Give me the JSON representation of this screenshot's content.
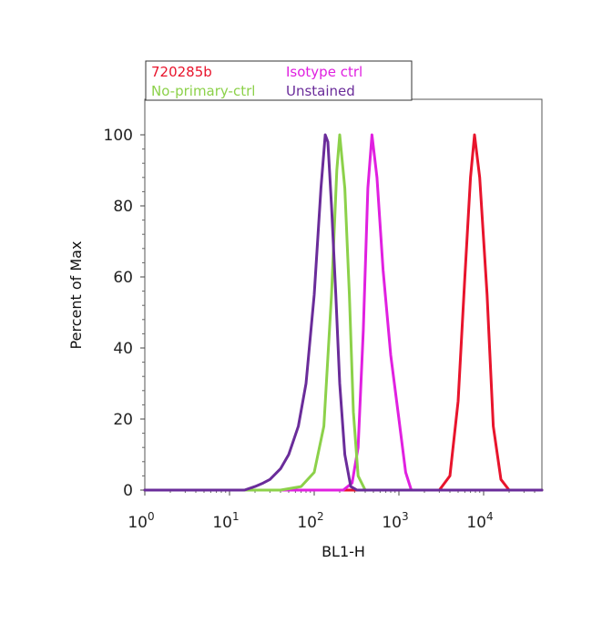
{
  "chart_data": {
    "type": "line",
    "title": "",
    "xlabel": "BL1-H",
    "ylabel": "Percent of Max",
    "x_scale": "log",
    "xlim": [
      1,
      60000
    ],
    "ylim": [
      0,
      110
    ],
    "grid": false,
    "legend_position": "top-left",
    "y_ticks": [
      0,
      20,
      40,
      60,
      80,
      100
    ],
    "x_ticks": [
      {
        "base": "10",
        "exp": "0"
      },
      {
        "base": "10",
        "exp": "1"
      },
      {
        "base": "10",
        "exp": "2"
      },
      {
        "base": "10",
        "exp": "3"
      },
      {
        "base": "10",
        "exp": "4"
      }
    ],
    "series": [
      {
        "name": "720285b",
        "color": "#e8142c",
        "x": [
          1,
          1000,
          3000,
          4000,
          5000,
          6000,
          7000,
          7800,
          9000,
          11000,
          13000,
          16000,
          20000,
          60000
        ],
        "y": [
          0,
          0,
          0,
          4,
          25,
          60,
          88,
          100,
          88,
          55,
          18,
          3,
          0,
          0
        ]
      },
      {
        "name": "Isotype ctrl",
        "color": "#e020e0",
        "x": [
          1,
          100,
          220,
          280,
          330,
          380,
          430,
          480,
          550,
          650,
          800,
          1000,
          1200,
          1400,
          2000,
          60000
        ],
        "y": [
          0,
          0,
          0,
          2,
          12,
          45,
          85,
          100,
          88,
          62,
          38,
          20,
          5,
          0,
          0,
          0
        ]
      },
      {
        "name": "No-primary-ctrl",
        "color": "#8cd14a",
        "x": [
          1,
          40,
          70,
          100,
          130,
          160,
          185,
          200,
          230,
          260,
          290,
          330,
          400,
          60000
        ],
        "y": [
          0,
          0,
          1,
          5,
          18,
          55,
          90,
          100,
          85,
          55,
          22,
          4,
          0,
          0
        ]
      },
      {
        "name": "Unstained",
        "color": "#6a2c9a",
        "x": [
          1,
          10,
          15,
          20,
          25,
          30,
          40,
          50,
          65,
          80,
          100,
          120,
          135,
          145,
          160,
          180,
          200,
          230,
          270,
          320,
          60000
        ],
        "y": [
          0,
          0,
          0,
          1,
          2,
          3,
          6,
          10,
          18,
          30,
          55,
          85,
          100,
          98,
          80,
          55,
          30,
          10,
          1,
          0,
          0
        ]
      }
    ]
  }
}
